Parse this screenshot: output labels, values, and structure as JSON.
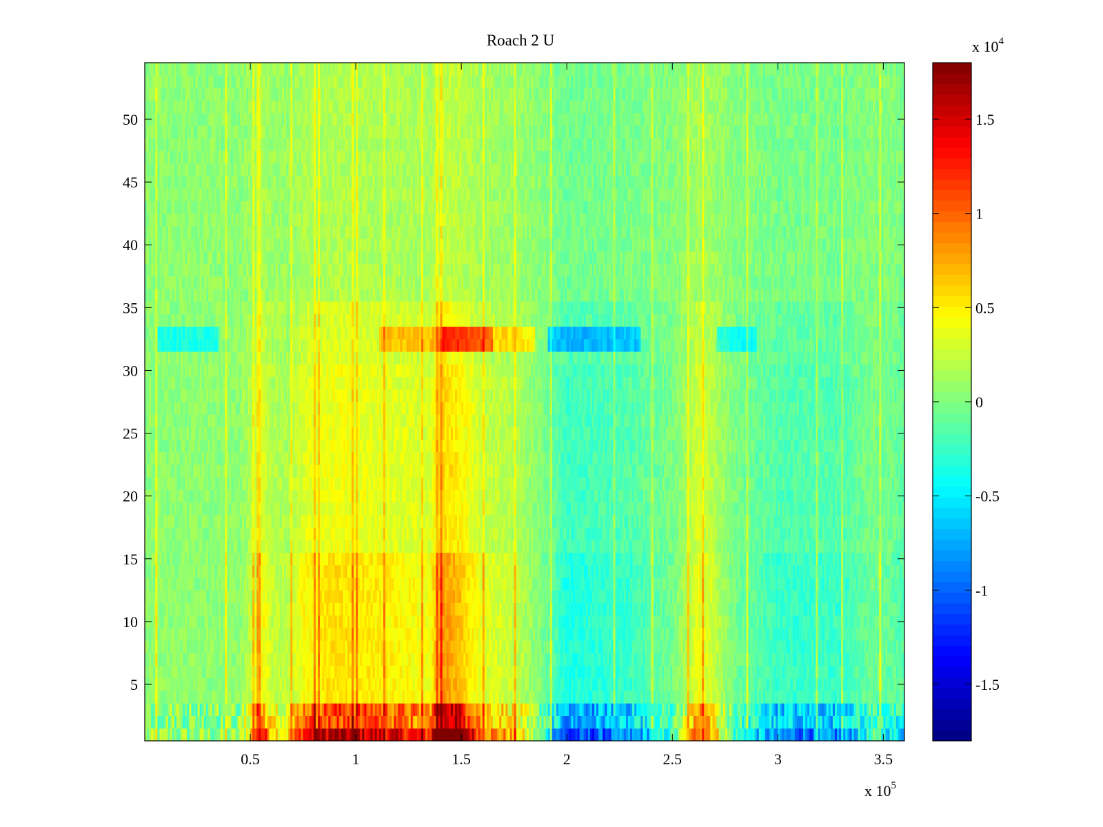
{
  "chart_data": {
    "type": "heatmap",
    "title": "Roach 2 U",
    "xlabel": "",
    "ylabel": "",
    "xlim": [
      0,
      360000
    ],
    "ylim": [
      0.5,
      54.5
    ],
    "x_ticks": [
      {
        "value": 50000,
        "label": "0.5"
      },
      {
        "value": 100000,
        "label": "1"
      },
      {
        "value": 150000,
        "label": "1.5"
      },
      {
        "value": 200000,
        "label": "2"
      },
      {
        "value": 250000,
        "label": "2.5"
      },
      {
        "value": 300000,
        "label": "3"
      },
      {
        "value": 350000,
        "label": "3.5"
      }
    ],
    "x_exponent": {
      "base": "x 10",
      "power": "5"
    },
    "y_ticks": [
      {
        "value": 5,
        "label": "5"
      },
      {
        "value": 10,
        "label": "10"
      },
      {
        "value": 15,
        "label": "15"
      },
      {
        "value": 20,
        "label": "20"
      },
      {
        "value": 25,
        "label": "25"
      },
      {
        "value": 30,
        "label": "30"
      },
      {
        "value": 35,
        "label": "35"
      },
      {
        "value": 40,
        "label": "40"
      },
      {
        "value": 45,
        "label": "45"
      },
      {
        "value": 50,
        "label": "50"
      }
    ],
    "colorbar": {
      "colormap": "jet",
      "clim": [
        -18000,
        18000
      ],
      "ticks": [
        {
          "value": 15000,
          "label": "1.5"
        },
        {
          "value": 10000,
          "label": "1"
        },
        {
          "value": 5000,
          "label": "0.5"
        },
        {
          "value": 0,
          "label": "0"
        },
        {
          "value": -5000,
          "label": "-0.5"
        },
        {
          "value": -10000,
          "label": "-1"
        },
        {
          "value": -15000,
          "label": "-1.5"
        }
      ],
      "exponent": {
        "base": "x 10",
        "power": "4"
      }
    },
    "grid": false,
    "background_value": 500,
    "x_profiles": [
      {
        "name": "column_bias",
        "points": [
          [
            0,
            0
          ],
          [
            45000,
            0
          ],
          [
            52000,
            2500
          ],
          [
            56000,
            4000
          ],
          [
            60000,
            2000
          ],
          [
            68000,
            1500
          ],
          [
            75000,
            4000
          ],
          [
            90000,
            5000
          ],
          [
            110000,
            4500
          ],
          [
            125000,
            4000
          ],
          [
            135000,
            3500
          ],
          [
            140000,
            8000
          ],
          [
            148000,
            6500
          ],
          [
            160000,
            3000
          ],
          [
            175000,
            2000
          ],
          [
            190000,
            -1000
          ],
          [
            200000,
            -4000
          ],
          [
            230000,
            -3000
          ],
          [
            250000,
            -1000
          ],
          [
            258000,
            1500
          ],
          [
            262000,
            3500
          ],
          [
            268000,
            2500
          ],
          [
            280000,
            -1000
          ],
          [
            300000,
            -3000
          ],
          [
            330000,
            -3000
          ],
          [
            345000,
            -1000
          ],
          [
            360000,
            -2000
          ]
        ]
      }
    ],
    "spikes_x": [
      5000,
      38000,
      51000,
      53500,
      69000,
      80000,
      82000,
      98000,
      100000,
      113000,
      131000,
      138000,
      140000,
      160000,
      175000,
      192000,
      222000,
      240000,
      257000,
      264000,
      285000,
      318000,
      330000,
      348000
    ]
  }
}
